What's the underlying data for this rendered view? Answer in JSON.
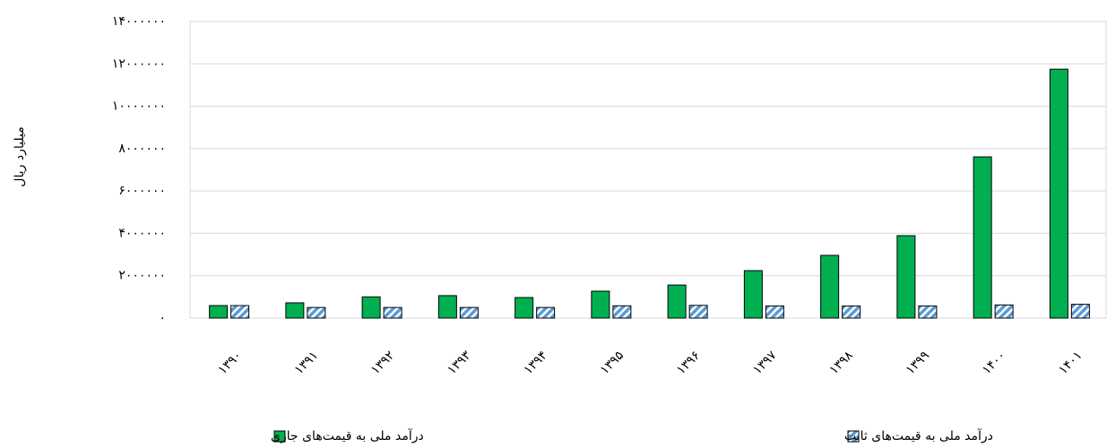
{
  "chart_data": {
    "type": "bar",
    "y_label": "میلیارد ریال",
    "categories": [
      "۱۳۹۰",
      "۱۳۹۱",
      "۱۳۹۲",
      "۱۳۹۳",
      "۱۳۹۴",
      "۱۳۹۵",
      "۱۳۹۶",
      "۱۳۹۷",
      "۱۳۹۸",
      "۱۳۹۹",
      "۱۴۰۰",
      "۱۴۰۱"
    ],
    "series": [
      {
        "name": "درآمد ملی به قیمت‌های جاری",
        "color": "#00b050",
        "pattern": "solid",
        "values": [
          590000,
          720000,
          1000000,
          1060000,
          970000,
          1270000,
          1560000,
          2240000,
          2960000,
          3890000,
          7610000,
          11750000
        ]
      },
      {
        "name": "درآمد ملی به قیمت‌های ثابت",
        "color": "#5b9bd5",
        "pattern": "hatch",
        "values": [
          590000,
          500000,
          500000,
          500000,
          500000,
          580000,
          600000,
          570000,
          570000,
          570000,
          620000,
          650000
        ]
      }
    ],
    "ylim": [
      0,
      14000000
    ],
    "yticks": [
      {
        "value": 0,
        "label": "۰"
      },
      {
        "value": 2000000,
        "label": "۲۰۰۰۰۰۰"
      },
      {
        "value": 4000000,
        "label": "۴۰۰۰۰۰۰"
      },
      {
        "value": 6000000,
        "label": "۶۰۰۰۰۰۰"
      },
      {
        "value": 8000000,
        "label": "۸۰۰۰۰۰۰"
      },
      {
        "value": 10000000,
        "label": "۱۰۰۰۰۰۰۰"
      },
      {
        "value": 12000000,
        "label": "۱۲۰۰۰۰۰۰"
      },
      {
        "value": 14000000,
        "label": "۱۴۰۰۰۰۰۰"
      }
    ],
    "grid": true,
    "legend": "bottom"
  }
}
